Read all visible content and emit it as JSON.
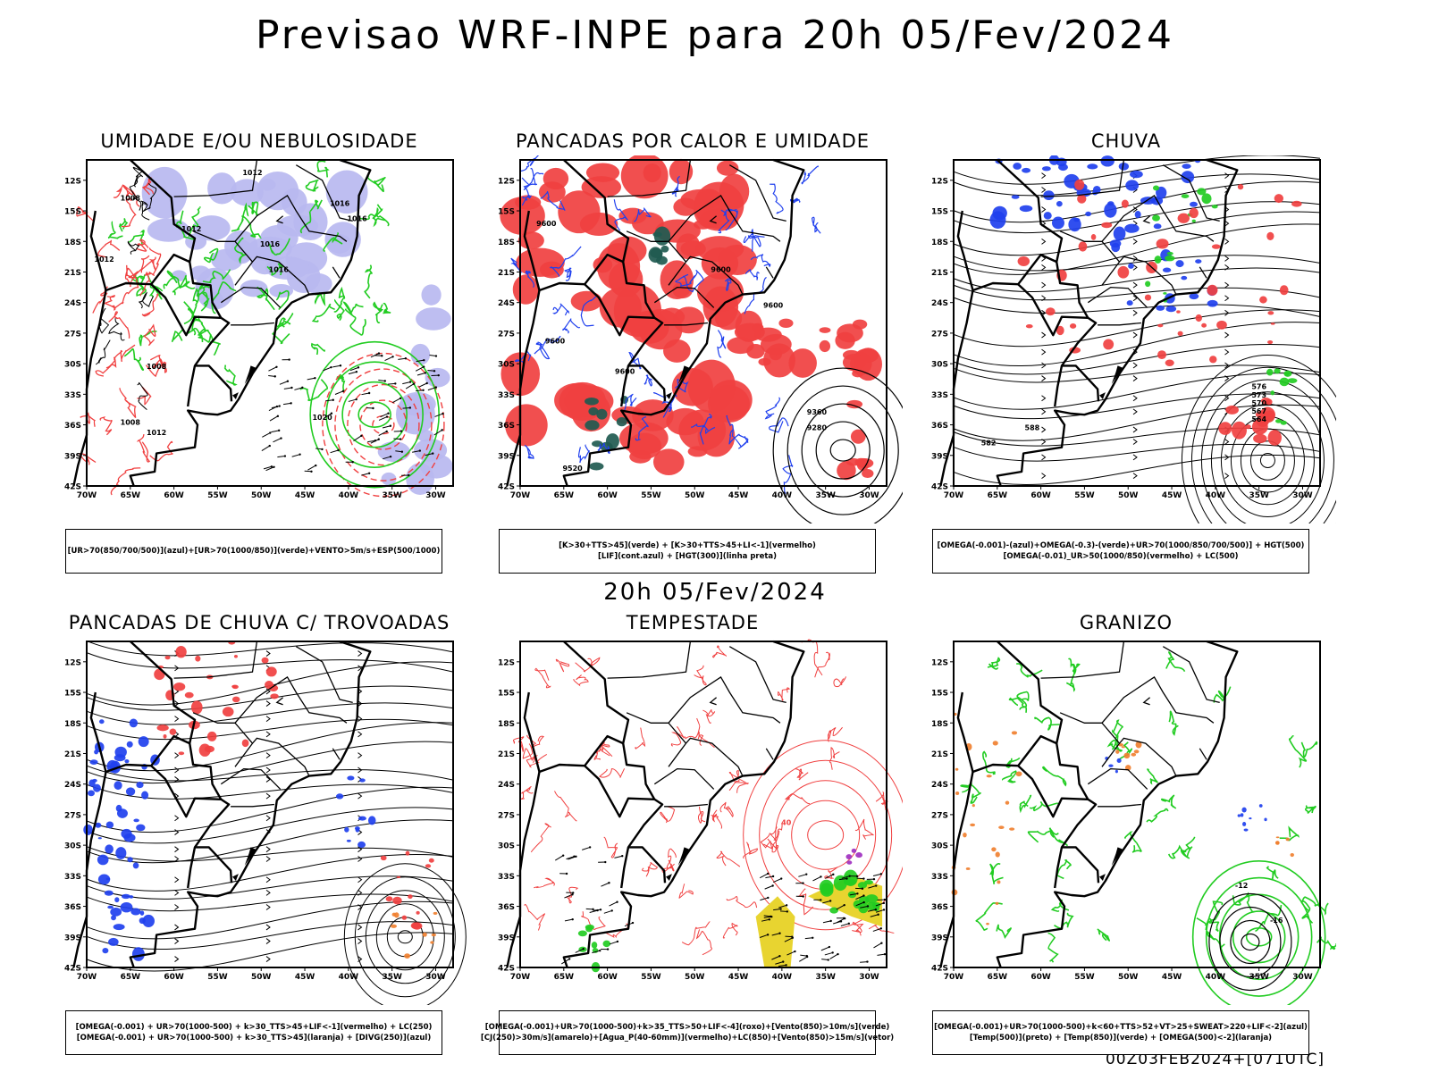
{
  "title": "Previsao WRF-INPE  para 20h 05/Fev/2024",
  "mid_date": "20h 05/Fev/2024",
  "footer": "00Z03FEB2024+[071UTC]",
  "axes": {
    "lat_labels": [
      "12S",
      "15S",
      "18S",
      "21S",
      "24S",
      "27S",
      "30S",
      "33S",
      "36S",
      "39S",
      "42S"
    ],
    "lon_labels": [
      "70W",
      "65W",
      "60W",
      "55W",
      "50W",
      "45W",
      "40W",
      "35W",
      "30W"
    ]
  },
  "colors": {
    "green": "#22cc22",
    "red": "#f04040",
    "blue": "#2040ee",
    "lavender": "#b8b8f0",
    "darkteal": "#1f5a50",
    "yellow": "#e8d430",
    "orange": "#f08030",
    "purple": "#a030c0"
  },
  "panels": [
    {
      "id": "umidade",
      "title": "UMIDADE E/OU NEBULOSIDADE",
      "legend": [
        "[UR>70(850/700/500)](azul)+[UR>70(1000/850)](verde)+VENTO>5m/s+ESP(500/1000)"
      ],
      "contour_labels": [
        "1012",
        "1008",
        "1016",
        "1016",
        "1012",
        "1012",
        "1008",
        "1016",
        "1016",
        "1020",
        "1012",
        "1008"
      ]
    },
    {
      "id": "pancadas-calor",
      "title": "PANCADAS POR CALOR E UMIDADE",
      "legend": [
        "[K>30+TTS>45](verde) + [K>30+TTS>45+LI<-1](vermelho)",
        "[LIF](cont.azul) + [HGT(300)](linha preta)"
      ],
      "contour_labels": [
        "9600",
        "9600",
        "9600",
        "9600",
        "9600",
        "9360",
        "9280",
        "9520"
      ]
    },
    {
      "id": "chuva",
      "title": "CHUVA",
      "legend": [
        "[OMEGA(-0.001)-(azul)+OMEGA(-0.3)-(verde)+UR>70(1000/850/700/500)] + HGT(500)",
        "[OMEGA(-0.01)_UR>50(1000/850)(vermelho) + LC(500)"
      ],
      "contour_labels": [
        "588",
        "582",
        "576",
        "573",
        "570",
        "567",
        "564"
      ]
    },
    {
      "id": "trovoadas",
      "title": "PANCADAS DE CHUVA C/ TROVOADAS",
      "legend": [
        "[OMEGA(-0.001) + UR>70(1000-500) + k>30_TTS>45+LIF<-1](vermelho) + LC(250)",
        "[OMEGA(-0.001) + UR>70(1000-500) + k>30_TTS>45](laranja) + [DIVG(250)](azul)"
      ],
      "contour_labels": []
    },
    {
      "id": "tempestade",
      "title": "TEMPESTADE",
      "legend": [
        "[OMEGA(-0.001)+UR>70(1000-500)+k>35_TTS>50+LIF<-4](roxo)+[Vento(850)>10m/s](verde)",
        "[CJ(250)>30m/s](amarelo)+[Agua_P(40-60mm)](vermelho)+LC(850)+[Vento(850)>15m/s](vetor)"
      ],
      "contour_labels": [
        "40"
      ]
    },
    {
      "id": "granizo",
      "title": "GRANIZO",
      "legend": [
        "[OMEGA(-0.001)+UR>70(1000-500)+k<60+TTS>52+VT>25+SWEAT>220+LIF<-2](azul)",
        "[Temp(500)](preto) + [Temp(850)](verde) + [OMEGA(500)<-2](laranja)"
      ],
      "contour_labels": [
        "-12",
        "-16"
      ]
    }
  ]
}
